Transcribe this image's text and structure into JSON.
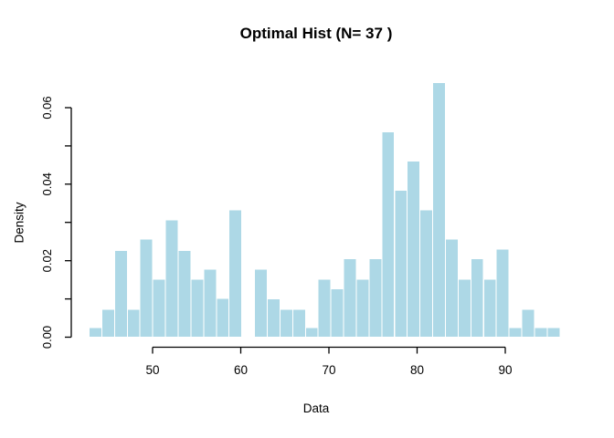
{
  "figure": {
    "title": "Optimal Hist (N= 37 )",
    "xlabel": "Data",
    "ylabel": "Density"
  },
  "chart_data": {
    "type": "bar",
    "subtype": "histogram",
    "title": "Optimal Hist (N= 37 )",
    "xlabel": "Data",
    "ylabel": "Density",
    "n_bins": 37,
    "bin_start": 42.8,
    "bin_width": 1.4432,
    "values": [
      0.0025,
      0.0073,
      0.0227,
      0.0073,
      0.0256,
      0.0151,
      0.0306,
      0.0227,
      0.0151,
      0.0178,
      0.0101,
      0.0333,
      0,
      0.0178,
      0.01,
      0.0073,
      0.0073,
      0.0025,
      0.0151,
      0.0126,
      0.0205,
      0.0151,
      0.0205,
      0.0537,
      0.0384,
      0.046,
      0.0333,
      0.0666,
      0.0256,
      0.0151,
      0.0205,
      0.0151,
      0.023,
      0.0025,
      0.0073,
      0.0025,
      0.0025
    ],
    "x_ticks": [
      50,
      60,
      70,
      80,
      90
    ],
    "x_tick_labels": [
      "50",
      "60",
      "70",
      "80",
      "90"
    ],
    "y_ticks": [
      0,
      0.01,
      0.02,
      0.03,
      0.04,
      0.05,
      0.06
    ],
    "y_tick_labels": [
      "0.00",
      "",
      "0.02",
      "",
      "0.04",
      "",
      "0.06"
    ],
    "xlim": [
      50,
      90
    ],
    "ylim": [
      0,
      0.06
    ],
    "grid": false,
    "legend": "none",
    "bar_color": "#ADD8E6",
    "bar_border_color": "#FFFFFF",
    "axis_color": "#000000",
    "text_color": "#000000",
    "background": "#FFFFFF"
  }
}
